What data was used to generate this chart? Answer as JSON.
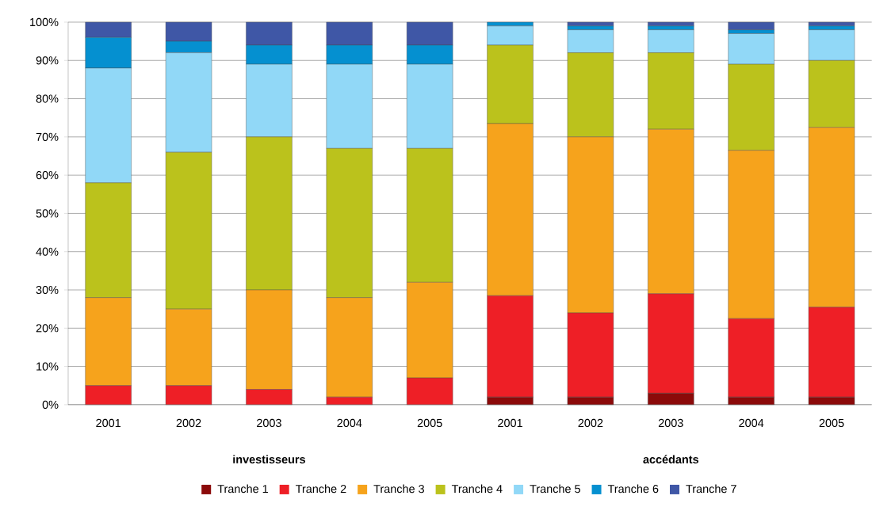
{
  "chart_data": {
    "type": "bar",
    "stacked": true,
    "grid": "y",
    "legend": "bottom",
    "categories": [
      "2001",
      "2002",
      "2003",
      "2004",
      "2005",
      "2001",
      "2002",
      "2003",
      "2004",
      "2005"
    ],
    "annotations": [
      "investisseurs",
      "accédants"
    ],
    "ylim": [
      0,
      100
    ],
    "yticks": [
      {
        "value": 0,
        "label": "0%"
      },
      {
        "value": 10,
        "label": "10%"
      },
      {
        "value": 20,
        "label": "20%"
      },
      {
        "value": 30,
        "label": "30%"
      },
      {
        "value": 40,
        "label": "40%"
      },
      {
        "value": 50,
        "label": "50%"
      },
      {
        "value": 60,
        "label": "60%"
      },
      {
        "value": 70,
        "label": "70%"
      },
      {
        "value": 80,
        "label": "80%"
      },
      {
        "value": 90,
        "label": "90%"
      },
      {
        "value": 100,
        "label": "100%"
      }
    ],
    "series": [
      {
        "name": "Tranche 1",
        "color": "#8b0a0a",
        "values": [
          0,
          0,
          0,
          0,
          0,
          2,
          2,
          3,
          2,
          2
        ]
      },
      {
        "name": "Tranche 2",
        "color": "#ee1f26",
        "values": [
          5,
          5,
          4,
          2,
          7,
          26.5,
          22,
          26,
          20.5,
          23.5
        ]
      },
      {
        "name": "Tranche 3",
        "color": "#f6a31c",
        "values": [
          23,
          20,
          26,
          26,
          25,
          45,
          46,
          43,
          44,
          47
        ]
      },
      {
        "name": "Tranche 4",
        "color": "#bbc21c",
        "values": [
          30,
          41,
          40,
          39,
          35,
          20.5,
          22,
          20,
          22.5,
          17.5
        ]
      },
      {
        "name": "Tranche 5",
        "color": "#91d8f7",
        "values": [
          30,
          26,
          19,
          22,
          22,
          5,
          6,
          6,
          8,
          8
        ]
      },
      {
        "name": "Tranche 6",
        "color": "#0590d0",
        "values": [
          8,
          3,
          5,
          5,
          5,
          1,
          1,
          1,
          1,
          1
        ]
      },
      {
        "name": "Tranche 7",
        "color": "#3f57a6",
        "values": [
          4,
          5,
          6,
          6,
          6,
          0,
          1,
          1,
          2,
          1
        ]
      }
    ]
  }
}
